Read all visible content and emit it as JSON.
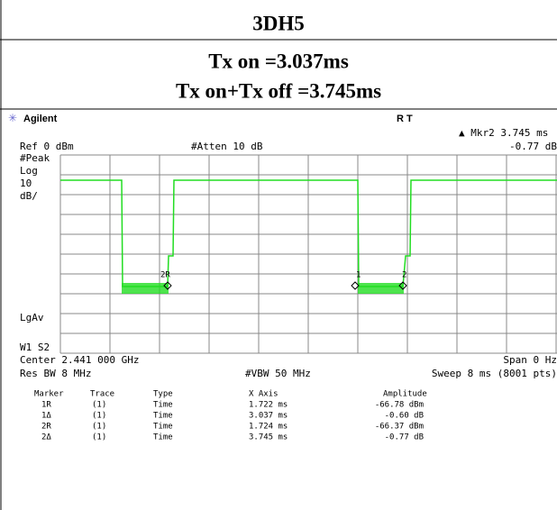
{
  "header": {
    "title": "3DH5",
    "lines": [
      "Tx on =3.037ms",
      "Tx on+Tx off =3.745ms"
    ]
  },
  "screen": {
    "brand": "Agilent",
    "status": "R  T",
    "marker_readout": "▲ Mkr2  3.745 ms",
    "ref": "Ref 0 dBm",
    "atten": "#Atten 10 dB",
    "marker_amplitude": "-0.77 dB",
    "left_labels": [
      "#Peak",
      "Log",
      "10",
      "dB/"
    ],
    "avg_label": "LgAv",
    "trace_mode": "W1  S2",
    "center": "Center 2.441 000 GHz",
    "span": "Span 0 Hz",
    "res_bw": "Res BW 8 MHz",
    "vbw": "#VBW 50 MHz",
    "sweep": "Sweep 8 ms (8001 pts)",
    "trace_markers": [
      "2R",
      "1",
      "2"
    ],
    "marker_table": {
      "columns": [
        "Marker",
        "Trace",
        "Type",
        "X Axis",
        "Amplitude"
      ],
      "rows": [
        [
          "1R",
          "(1)",
          "Time",
          "1.722 ms",
          "-66.78 dBm"
        ],
        [
          "1Δ",
          "(1)",
          "Time",
          "3.037 ms",
          "-0.60 dB"
        ],
        [
          "2R",
          "(1)",
          "Time",
          "1.724 ms",
          "-66.37 dBm"
        ],
        [
          "2Δ",
          "(1)",
          "Time",
          "3.745 ms",
          "-0.77 dB"
        ]
      ]
    }
  }
}
